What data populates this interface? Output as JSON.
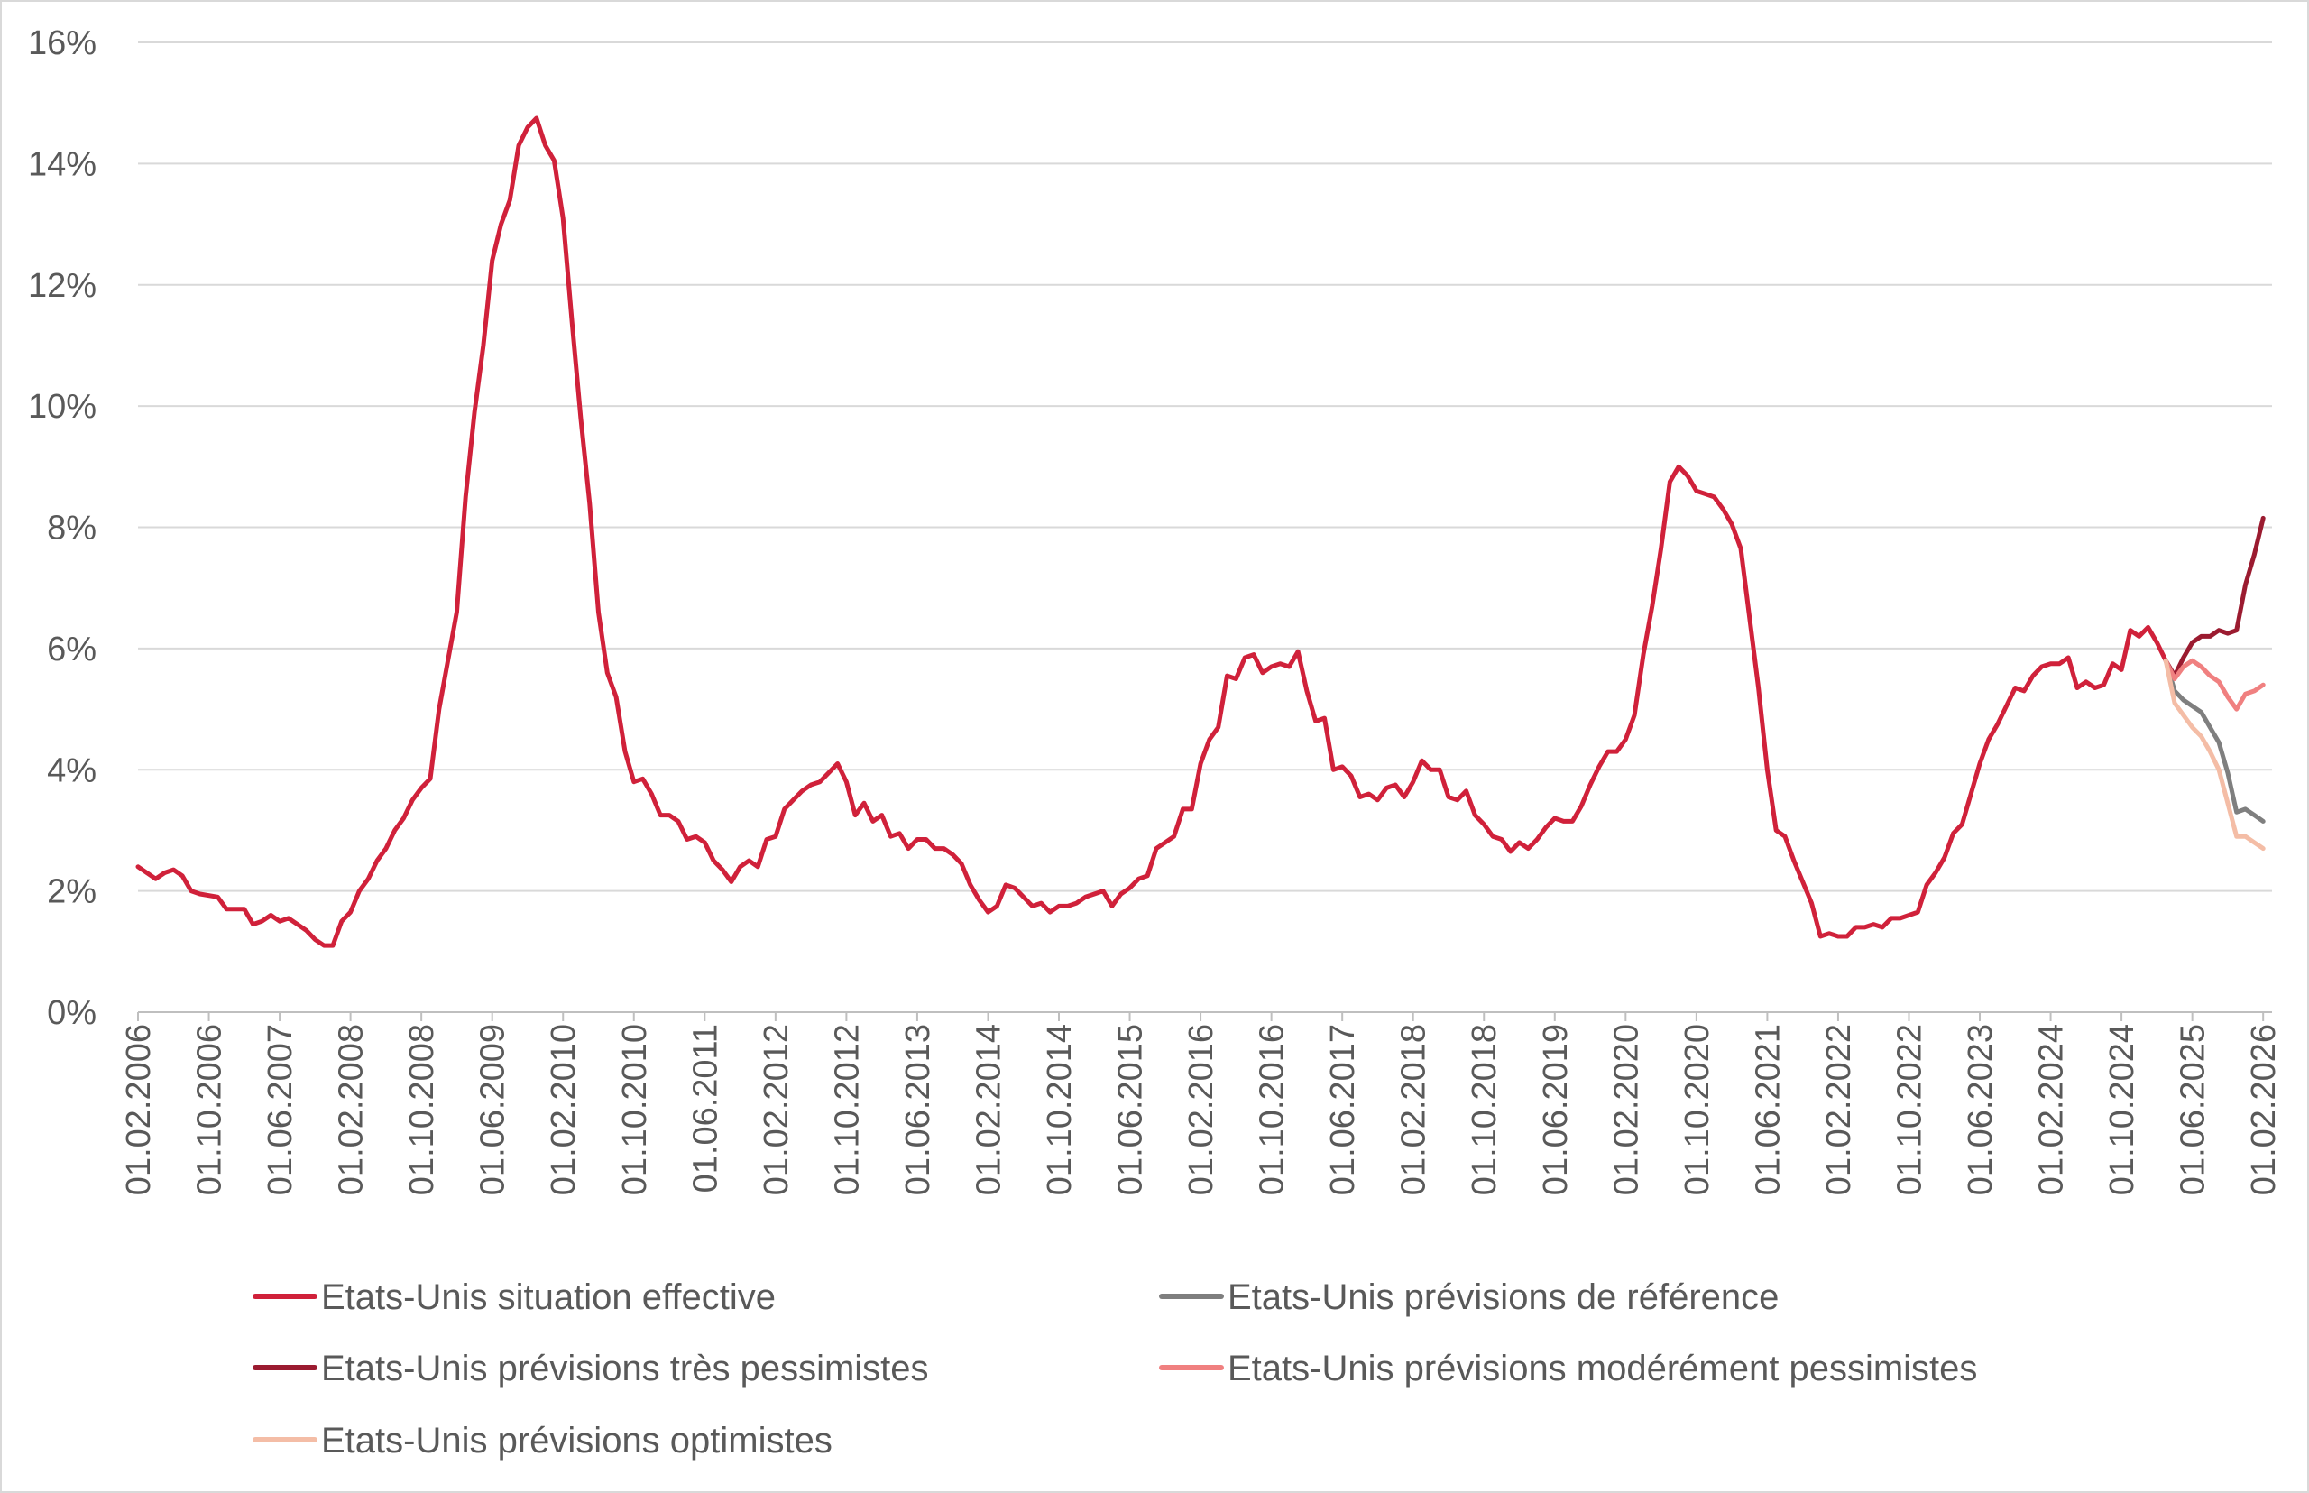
{
  "chart_data": {
    "type": "line",
    "title": "",
    "xlabel": "",
    "ylabel": "",
    "ylim": [
      0,
      16
    ],
    "y_tick_format": "percent",
    "y_ticks": [
      "0%",
      "2%",
      "4%",
      "6%",
      "8%",
      "10%",
      "12%",
      "14%",
      "16%"
    ],
    "x_start": "2006-02",
    "x_end": "2026-03",
    "x_ticks": [
      "01.02.2006",
      "01.10.2006",
      "01.06.2007",
      "01.02.2008",
      "01.10.2008",
      "01.06.2009",
      "01.02.2010",
      "01.10.2010",
      "01.06.2011",
      "01.02.2012",
      "01.10.2012",
      "01.06.2013",
      "01.02.2014",
      "01.10.2014",
      "01.06.2015",
      "01.02.2016",
      "01.10.2016",
      "01.06.2017",
      "01.02.2018",
      "01.10.2018",
      "01.06.2019",
      "01.02.2020",
      "01.10.2020",
      "01.06.2021",
      "01.02.2022",
      "01.10.2022",
      "01.06.2023",
      "01.02.2024",
      "01.10.2024",
      "01.06.2025",
      "01.02.2026"
    ],
    "grid": "horizontal",
    "legend_position": "bottom",
    "series": [
      {
        "name": "Etats-Unis situation effective",
        "color": "#d0213a",
        "points": [
          [
            "2006-02",
            2.4
          ],
          [
            "2006-04",
            2.2
          ],
          [
            "2006-05",
            2.3
          ],
          [
            "2006-06",
            2.35
          ],
          [
            "2006-07",
            2.25
          ],
          [
            "2006-08",
            2.0
          ],
          [
            "2006-09",
            1.95
          ],
          [
            "2006-11",
            1.9
          ],
          [
            "2006-12",
            1.7
          ],
          [
            "2007-02",
            1.7
          ],
          [
            "2007-03",
            1.45
          ],
          [
            "2007-04",
            1.5
          ],
          [
            "2007-05",
            1.6
          ],
          [
            "2007-06",
            1.5
          ],
          [
            "2007-07",
            1.55
          ],
          [
            "2007-08",
            1.45
          ],
          [
            "2007-09",
            1.35
          ],
          [
            "2007-10",
            1.2
          ],
          [
            "2007-11",
            1.1
          ],
          [
            "2007-12",
            1.1
          ],
          [
            "2008-01",
            1.5
          ],
          [
            "2008-02",
            1.65
          ],
          [
            "2008-03",
            2.0
          ],
          [
            "2008-04",
            2.2
          ],
          [
            "2008-05",
            2.5
          ],
          [
            "2008-06",
            2.7
          ],
          [
            "2008-07",
            3.0
          ],
          [
            "2008-08",
            3.2
          ],
          [
            "2008-09",
            3.5
          ],
          [
            "2008-10",
            3.7
          ],
          [
            "2008-11",
            3.85
          ],
          [
            "2008-12",
            5.0
          ],
          [
            "2009-01",
            5.8
          ],
          [
            "2009-02",
            6.6
          ],
          [
            "2009-03",
            8.5
          ],
          [
            "2009-04",
            9.9
          ],
          [
            "2009-05",
            11.0
          ],
          [
            "2009-06",
            12.4
          ],
          [
            "2009-07",
            13.0
          ],
          [
            "2009-08",
            13.4
          ],
          [
            "2009-09",
            14.3
          ],
          [
            "2009-10",
            14.6
          ],
          [
            "2009-11",
            14.75
          ],
          [
            "2009-12",
            14.3
          ],
          [
            "2010-01",
            14.05
          ],
          [
            "2010-02",
            13.1
          ],
          [
            "2010-03",
            11.4
          ],
          [
            "2010-04",
            9.8
          ],
          [
            "2010-05",
            8.4
          ],
          [
            "2010-06",
            6.6
          ],
          [
            "2010-07",
            5.6
          ],
          [
            "2010-08",
            5.2
          ],
          [
            "2010-09",
            4.3
          ],
          [
            "2010-10",
            3.8
          ],
          [
            "2010-11",
            3.85
          ],
          [
            "2010-12",
            3.6
          ],
          [
            "2011-01",
            3.25
          ],
          [
            "2011-02",
            3.25
          ],
          [
            "2011-03",
            3.15
          ],
          [
            "2011-04",
            2.85
          ],
          [
            "2011-05",
            2.9
          ],
          [
            "2011-06",
            2.8
          ],
          [
            "2011-07",
            2.5
          ],
          [
            "2011-08",
            2.35
          ],
          [
            "2011-09",
            2.15
          ],
          [
            "2011-10",
            2.4
          ],
          [
            "2011-11",
            2.5
          ],
          [
            "2011-12",
            2.4
          ],
          [
            "2012-01",
            2.85
          ],
          [
            "2012-02",
            2.9
          ],
          [
            "2012-03",
            3.35
          ],
          [
            "2012-04",
            3.5
          ],
          [
            "2012-05",
            3.65
          ],
          [
            "2012-06",
            3.75
          ],
          [
            "2012-07",
            3.8
          ],
          [
            "2012-08",
            3.95
          ],
          [
            "2012-09",
            4.1
          ],
          [
            "2012-10",
            3.8
          ],
          [
            "2012-11",
            3.25
          ],
          [
            "2012-12",
            3.45
          ],
          [
            "2013-01",
            3.15
          ],
          [
            "2013-02",
            3.25
          ],
          [
            "2013-03",
            2.9
          ],
          [
            "2013-04",
            2.95
          ],
          [
            "2013-05",
            2.7
          ],
          [
            "2013-06",
            2.85
          ],
          [
            "2013-07",
            2.85
          ],
          [
            "2013-08",
            2.7
          ],
          [
            "2013-09",
            2.7
          ],
          [
            "2013-10",
            2.6
          ],
          [
            "2013-11",
            2.45
          ],
          [
            "2013-12",
            2.1
          ],
          [
            "2014-01",
            1.85
          ],
          [
            "2014-02",
            1.65
          ],
          [
            "2014-03",
            1.75
          ],
          [
            "2014-04",
            2.1
          ],
          [
            "2014-05",
            2.05
          ],
          [
            "2014-06",
            1.9
          ],
          [
            "2014-07",
            1.75
          ],
          [
            "2014-08",
            1.8
          ],
          [
            "2014-09",
            1.65
          ],
          [
            "2014-10",
            1.75
          ],
          [
            "2014-11",
            1.75
          ],
          [
            "2014-12",
            1.8
          ],
          [
            "2015-01",
            1.9
          ],
          [
            "2015-02",
            1.95
          ],
          [
            "2015-03",
            2.0
          ],
          [
            "2015-04",
            1.75
          ],
          [
            "2015-05",
            1.95
          ],
          [
            "2015-06",
            2.05
          ],
          [
            "2015-07",
            2.2
          ],
          [
            "2015-08",
            2.25
          ],
          [
            "2015-09",
            2.7
          ],
          [
            "2015-10",
            2.8
          ],
          [
            "2015-11",
            2.9
          ],
          [
            "2015-12",
            3.35
          ],
          [
            "2016-01",
            3.35
          ],
          [
            "2016-02",
            4.1
          ],
          [
            "2016-03",
            4.5
          ],
          [
            "2016-04",
            4.7
          ],
          [
            "2016-05",
            5.55
          ],
          [
            "2016-06",
            5.5
          ],
          [
            "2016-07",
            5.85
          ],
          [
            "2016-08",
            5.9
          ],
          [
            "2016-09",
            5.6
          ],
          [
            "2016-10",
            5.7
          ],
          [
            "2016-11",
            5.75
          ],
          [
            "2016-12",
            5.7
          ],
          [
            "2017-01",
            5.95
          ],
          [
            "2017-02",
            5.3
          ],
          [
            "2017-03",
            4.8
          ],
          [
            "2017-04",
            4.85
          ],
          [
            "2017-05",
            4.0
          ],
          [
            "2017-06",
            4.05
          ],
          [
            "2017-07",
            3.9
          ],
          [
            "2017-08",
            3.55
          ],
          [
            "2017-09",
            3.6
          ],
          [
            "2017-10",
            3.5
          ],
          [
            "2017-11",
            3.7
          ],
          [
            "2017-12",
            3.75
          ],
          [
            "2018-01",
            3.55
          ],
          [
            "2018-02",
            3.8
          ],
          [
            "2018-03",
            4.15
          ],
          [
            "2018-04",
            4.0
          ],
          [
            "2018-05",
            4.0
          ],
          [
            "2018-06",
            3.55
          ],
          [
            "2018-07",
            3.5
          ],
          [
            "2018-08",
            3.65
          ],
          [
            "2018-09",
            3.25
          ],
          [
            "2018-10",
            3.1
          ],
          [
            "2018-11",
            2.9
          ],
          [
            "2018-12",
            2.85
          ],
          [
            "2019-01",
            2.65
          ],
          [
            "2019-02",
            2.8
          ],
          [
            "2019-03",
            2.7
          ],
          [
            "2019-04",
            2.85
          ],
          [
            "2019-05",
            3.05
          ],
          [
            "2019-06",
            3.2
          ],
          [
            "2019-07",
            3.15
          ],
          [
            "2019-08",
            3.15
          ],
          [
            "2019-09",
            3.4
          ],
          [
            "2019-10",
            3.75
          ],
          [
            "2019-11",
            4.05
          ],
          [
            "2019-12",
            4.3
          ],
          [
            "2020-01",
            4.3
          ],
          [
            "2020-02",
            4.5
          ],
          [
            "2020-03",
            4.9
          ],
          [
            "2020-04",
            5.9
          ],
          [
            "2020-05",
            6.7
          ],
          [
            "2020-06",
            7.65
          ],
          [
            "2020-07",
            8.75
          ],
          [
            "2020-08",
            9.0
          ],
          [
            "2020-09",
            8.85
          ],
          [
            "2020-10",
            8.6
          ],
          [
            "2020-11",
            8.55
          ],
          [
            "2020-12",
            8.5
          ],
          [
            "2021-01",
            8.3
          ],
          [
            "2021-02",
            8.05
          ],
          [
            "2021-03",
            7.65
          ],
          [
            "2021-04",
            6.5
          ],
          [
            "2021-05",
            5.35
          ],
          [
            "2021-06",
            4.0
          ],
          [
            "2021-07",
            3.0
          ],
          [
            "2021-08",
            2.9
          ],
          [
            "2021-09",
            2.5
          ],
          [
            "2021-10",
            2.15
          ],
          [
            "2021-11",
            1.8
          ],
          [
            "2021-12",
            1.25
          ],
          [
            "2022-01",
            1.3
          ],
          [
            "2022-02",
            1.25
          ],
          [
            "2022-03",
            1.25
          ],
          [
            "2022-04",
            1.4
          ],
          [
            "2022-05",
            1.4
          ],
          [
            "2022-06",
            1.45
          ],
          [
            "2022-07",
            1.4
          ],
          [
            "2022-08",
            1.55
          ],
          [
            "2022-09",
            1.55
          ],
          [
            "2022-10",
            1.6
          ],
          [
            "2022-11",
            1.65
          ],
          [
            "2022-12",
            2.1
          ],
          [
            "2023-01",
            2.3
          ],
          [
            "2023-02",
            2.55
          ],
          [
            "2023-03",
            2.95
          ],
          [
            "2023-04",
            3.1
          ],
          [
            "2023-05",
            3.6
          ],
          [
            "2023-06",
            4.1
          ],
          [
            "2023-07",
            4.5
          ],
          [
            "2023-08",
            4.75
          ],
          [
            "2023-09",
            5.05
          ],
          [
            "2023-10",
            5.35
          ],
          [
            "2023-11",
            5.3
          ],
          [
            "2023-12",
            5.55
          ],
          [
            "2024-01",
            5.7
          ],
          [
            "2024-02",
            5.75
          ],
          [
            "2024-03",
            5.75
          ],
          [
            "2024-04",
            5.85
          ],
          [
            "2024-05",
            5.35
          ],
          [
            "2024-06",
            5.45
          ],
          [
            "2024-07",
            5.35
          ],
          [
            "2024-08",
            5.4
          ],
          [
            "2024-09",
            5.75
          ],
          [
            "2024-10",
            5.65
          ],
          [
            "2024-11",
            6.3
          ],
          [
            "2024-12",
            6.2
          ],
          [
            "2025-01",
            6.35
          ],
          [
            "2025-02",
            6.1
          ],
          [
            "2025-03",
            5.8
          ]
        ]
      },
      {
        "name": "Etats-Unis prévisions de référence",
        "color": "#7f7f7f",
        "points": [
          [
            "2025-03",
            5.8
          ],
          [
            "2025-04",
            5.3
          ],
          [
            "2025-05",
            5.15
          ],
          [
            "2025-06",
            5.05
          ],
          [
            "2025-07",
            4.95
          ],
          [
            "2025-08",
            4.7
          ],
          [
            "2025-09",
            4.45
          ],
          [
            "2025-10",
            3.95
          ],
          [
            "2025-11",
            3.3
          ],
          [
            "2025-12",
            3.35
          ],
          [
            "2026-01",
            3.25
          ],
          [
            "2026-02",
            3.15
          ]
        ]
      },
      {
        "name": "Etats-Unis prévisions très pessimistes",
        "color": "#9b1b30",
        "points": [
          [
            "2025-03",
            5.8
          ],
          [
            "2025-04",
            5.55
          ],
          [
            "2025-05",
            5.85
          ],
          [
            "2025-06",
            6.1
          ],
          [
            "2025-07",
            6.2
          ],
          [
            "2025-08",
            6.2
          ],
          [
            "2025-09",
            6.3
          ],
          [
            "2025-10",
            6.25
          ],
          [
            "2025-11",
            6.3
          ],
          [
            "2025-12",
            7.05
          ],
          [
            "2026-01",
            7.55
          ],
          [
            "2026-02",
            8.15
          ]
        ]
      },
      {
        "name": "Etats-Unis prévisions modérément pessimistes",
        "color": "#f08080",
        "points": [
          [
            "2025-03",
            5.8
          ],
          [
            "2025-04",
            5.5
          ],
          [
            "2025-05",
            5.7
          ],
          [
            "2025-06",
            5.8
          ],
          [
            "2025-07",
            5.7
          ],
          [
            "2025-08",
            5.55
          ],
          [
            "2025-09",
            5.45
          ],
          [
            "2025-10",
            5.2
          ],
          [
            "2025-11",
            5.0
          ],
          [
            "2025-12",
            5.25
          ],
          [
            "2026-01",
            5.3
          ],
          [
            "2026-02",
            5.4
          ]
        ]
      },
      {
        "name": "Etats-Unis prévisions optimistes",
        "color": "#f4bda6",
        "points": [
          [
            "2025-03",
            5.8
          ],
          [
            "2025-04",
            5.1
          ],
          [
            "2025-05",
            4.9
          ],
          [
            "2025-06",
            4.7
          ],
          [
            "2025-07",
            4.55
          ],
          [
            "2025-08",
            4.3
          ],
          [
            "2025-09",
            4.0
          ],
          [
            "2025-10",
            3.45
          ],
          [
            "2025-11",
            2.9
          ],
          [
            "2025-12",
            2.9
          ],
          [
            "2026-01",
            2.8
          ],
          [
            "2026-02",
            2.7
          ]
        ]
      }
    ]
  }
}
